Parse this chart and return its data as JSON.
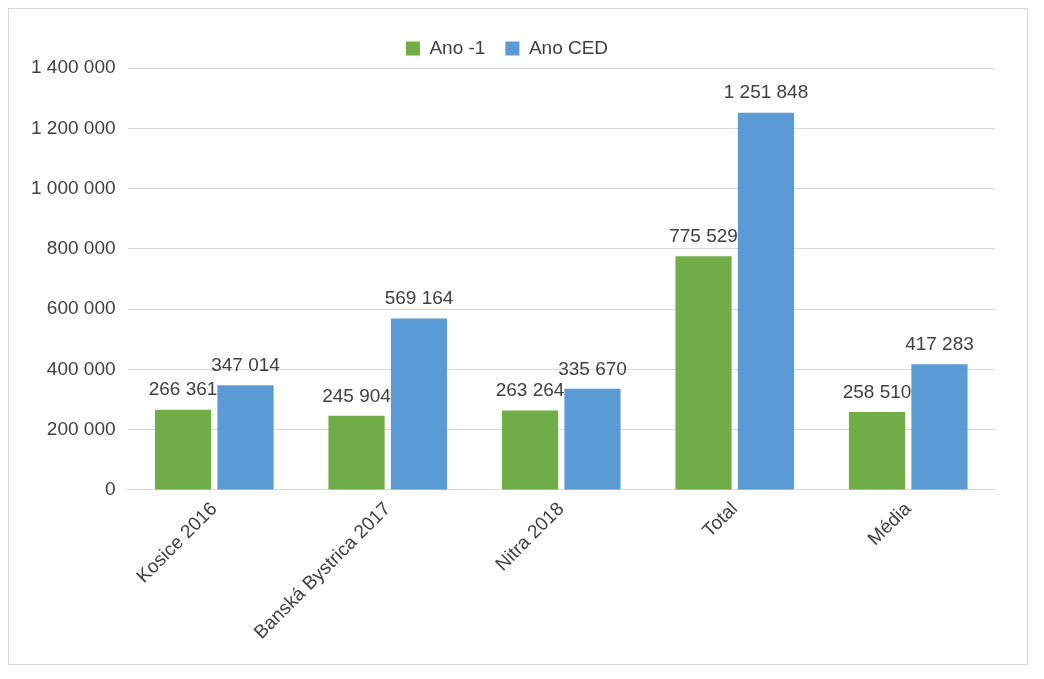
{
  "chart_data": {
    "type": "bar",
    "categories": [
      "Kosice 2016",
      "Banská Bystrica 2017",
      "Nitra 2018",
      "Total",
      "Média"
    ],
    "series": [
      {
        "name": "Ano -1",
        "color": "#70ad47",
        "values": [
          266361,
          245904,
          263264,
          775529,
          258510
        ],
        "value_labels": [
          "266 361",
          "245 904",
          "263 264",
          "775 529",
          "258 510"
        ]
      },
      {
        "name": "Ano CED",
        "color": "#5b9bd5",
        "values": [
          347014,
          569164,
          335670,
          1251848,
          417283
        ],
        "value_labels": [
          "347 014",
          "569 164",
          "335 670",
          "1 251 848",
          "417 283"
        ]
      }
    ],
    "ylim": [
      0,
      1400000
    ],
    "yticks": [
      {
        "value": 0,
        "label": "0"
      },
      {
        "value": 200000,
        "label": "200 000"
      },
      {
        "value": 400000,
        "label": "400 000"
      },
      {
        "value": 600000,
        "label": "600 000"
      },
      {
        "value": 800000,
        "label": "800 000"
      },
      {
        "value": 1000000,
        "label": "1 000 000"
      },
      {
        "value": 1200000,
        "label": "1 200 000"
      },
      {
        "value": 1400000,
        "label": "1 400 000"
      }
    ],
    "grid": "y",
    "legend": "top"
  }
}
